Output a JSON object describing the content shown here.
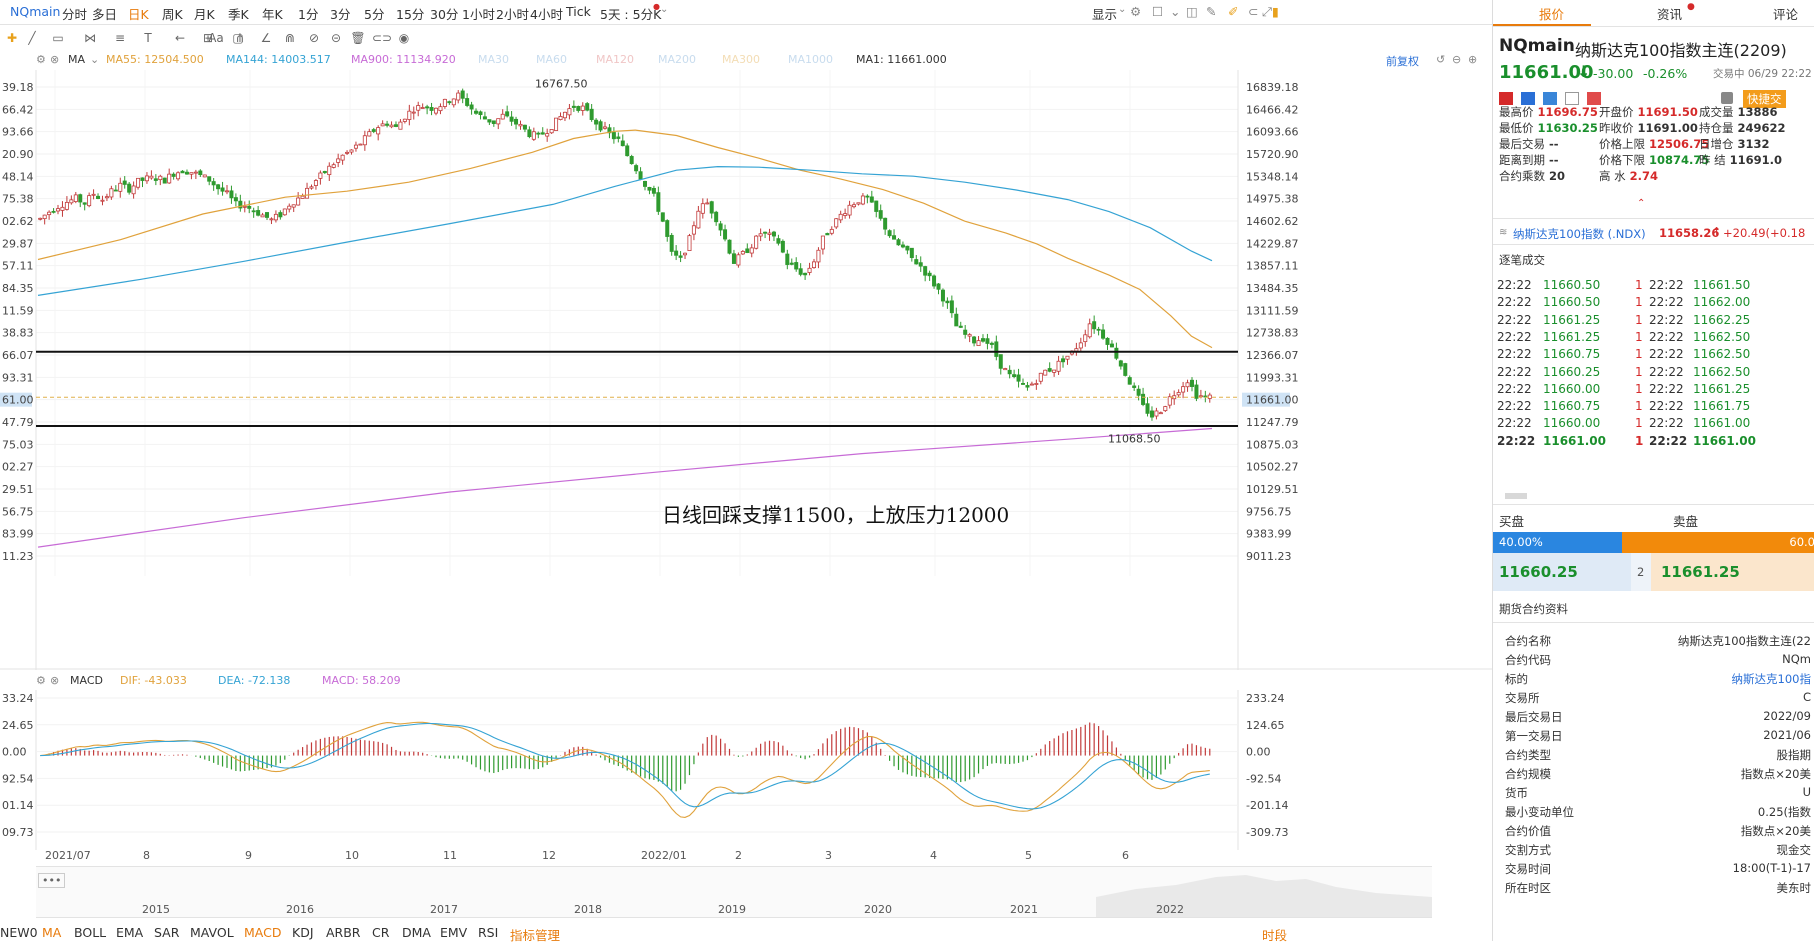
{
  "topbar": {
    "symbol": "NQmain",
    "periods": [
      "分时",
      "多日",
      "日K",
      "周K",
      "月K",
      "季K",
      "年K",
      "1分",
      "3分",
      "5分",
      "15分",
      "30分",
      "1小时",
      "2小时",
      "4小时",
      "Tick",
      "5天 : 5分K"
    ],
    "active_period": "日K",
    "display_label": "显示"
  },
  "ma_bar": {
    "type_label": "MA",
    "ma55": "MA55: 12504.500",
    "ma144": "MA144: 14003.517",
    "ma900": "MA900: 11134.920",
    "ma30": "MA30",
    "ma60": "MA60",
    "ma120": "MA120",
    "ma200": "MA200",
    "ma300": "MA300",
    "ma1000": "MA1000",
    "ma1": "MA1: 11661.000",
    "adjust_label": "前复权",
    "colors": {
      "ma55": "#e0a23c",
      "ma144": "#35a3d4",
      "ma900": "#c76bd6",
      "faded": "#c8dcee",
      "ma1": "#333333"
    }
  },
  "chart": {
    "high_label": "16767.50",
    "low_label": "11068.50",
    "current_price_label": "11661.00",
    "annotation": "日线回踩支撑11500，上放压力12000",
    "left_axis": [
      "39.18",
      "66.42",
      "93.66",
      "20.90",
      "48.14",
      "75.38",
      "02.62",
      "29.87",
      "57.11",
      "84.35",
      "11.59",
      "38.83",
      "66.07",
      "93.31",
      "61.00",
      "47.79",
      "75.03",
      "02.27",
      "29.51",
      "56.75",
      "83.99",
      "11.23"
    ],
    "right_axis": [
      "16839.18",
      "16466.42",
      "16093.66",
      "15720.90",
      "15348.14",
      "14975.38",
      "14602.62",
      "14229.87",
      "13857.11",
      "13484.35",
      "13111.59",
      "12738.83",
      "12366.07",
      "11993.31",
      "11661.00",
      "11247.79",
      "10875.03",
      "10502.27",
      "10129.51",
      "9756.75",
      "9383.99",
      "9011.23"
    ]
  },
  "chart_data": {
    "type": "candlestick",
    "ylim": [
      9011.23,
      16839.18
    ],
    "support_lines": [
      12420,
      11180
    ],
    "ma55_points": [
      [
        0,
        13960
      ],
      [
        8,
        14290
      ],
      [
        16,
        14720
      ],
      [
        24,
        15000
      ],
      [
        30,
        15100
      ],
      [
        36,
        15250
      ],
      [
        42,
        15480
      ],
      [
        48,
        15750
      ],
      [
        52,
        15980
      ],
      [
        56,
        16100
      ],
      [
        58,
        16120
      ],
      [
        62,
        16030
      ],
      [
        66,
        15830
      ],
      [
        70,
        15650
      ],
      [
        74,
        15450
      ],
      [
        78,
        15300
      ],
      [
        82,
        15130
      ],
      [
        86,
        14900
      ],
      [
        90,
        14600
      ],
      [
        94,
        14400
      ],
      [
        97,
        14220
      ],
      [
        100,
        13980
      ],
      [
        104,
        13700
      ],
      [
        107,
        13460
      ],
      [
        110,
        13020
      ],
      [
        112,
        12680
      ],
      [
        114,
        12490
      ]
    ],
    "ma144_points": [
      [
        0,
        13360
      ],
      [
        10,
        13630
      ],
      [
        20,
        13930
      ],
      [
        30,
        14250
      ],
      [
        40,
        14560
      ],
      [
        50,
        14880
      ],
      [
        56,
        15180
      ],
      [
        62,
        15450
      ],
      [
        66,
        15510
      ],
      [
        70,
        15500
      ],
      [
        75,
        15450
      ],
      [
        80,
        15390
      ],
      [
        85,
        15350
      ],
      [
        90,
        15250
      ],
      [
        95,
        15120
      ],
      [
        100,
        14960
      ],
      [
        104,
        14760
      ],
      [
        108,
        14490
      ],
      [
        112,
        14100
      ],
      [
        114,
        13940
      ]
    ],
    "ma900_points": [
      [
        0,
        9160
      ],
      [
        20,
        9650
      ],
      [
        40,
        10080
      ],
      [
        60,
        10410
      ],
      [
        80,
        10720
      ],
      [
        100,
        10960
      ],
      [
        114,
        11140
      ]
    ],
    "candles_note": "approximate daily candles Jul 2021 - Jun 2022",
    "closes": [
      14640,
      14760,
      14850,
      14920,
      14980,
      14900,
      15060,
      14960,
      15100,
      15200,
      15140,
      15260,
      15310,
      15320,
      15290,
      15400,
      15450,
      15420,
      15360,
      15290,
      15150,
      15050,
      14880,
      14860,
      14780,
      14700,
      14620,
      14710,
      14880,
      14980,
      15120,
      15280,
      15420,
      15560,
      15690,
      15780,
      15900,
      16050,
      16180,
      16240,
      16160,
      16350,
      16480,
      16520,
      16490,
      16540,
      16620,
      16700,
      16560,
      16400,
      16310,
      16250,
      16360,
      16280,
      16180,
      16060,
      16010,
      16120,
      16260,
      16420,
      16520,
      16490,
      16320,
      16180,
      16050,
      15950,
      15700,
      15480,
      15220,
      15010,
      14600,
      14050,
      13950,
      14300,
      14800,
      14900,
      14650,
      14300,
      13920,
      14050,
      14200,
      14400,
      14350,
      14250,
      13900,
      13800,
      13700,
      13950,
      14300,
      14520,
      14700,
      14860,
      14950,
      14980,
      14740,
      14500,
      14250,
      14150,
      13980,
      13850,
      13650,
      13450,
      13200,
      12850,
      12700,
      12600,
      12650,
      12500,
      12200,
      12020,
      11900,
      11820,
      11950,
      12100,
      12150,
      12300,
      12400,
      12600,
      12900,
      12780,
      12600,
      12350,
      12050,
      11780,
      11500,
      11350,
      11450,
      11650,
      11800,
      11950,
      11700,
      11661
    ],
    "macd_series": {
      "dif": "-43.033",
      "dea": "-72.138",
      "macd": "58.209",
      "ylim": [
        -309.73,
        233.24
      ]
    }
  },
  "macd_bar": {
    "type_label": "MACD",
    "dif": "DIF: -43.033",
    "dea": "DEA: -72.138",
    "macd": "MACD: 58.209",
    "left_axis": [
      "33.24",
      "24.65",
      "0.00",
      "92.54",
      "01.14",
      "09.73"
    ],
    "right_axis": [
      "233.24",
      "124.65",
      "0.00",
      "-92.54",
      "-201.14",
      "-309.73"
    ]
  },
  "xaxis": [
    "2021/07",
    "8",
    "9",
    "10",
    "11",
    "12",
    "2022/01",
    "2",
    "3",
    "4",
    "5",
    "6"
  ],
  "nav": {
    "dots": "•••",
    "years": [
      "2015",
      "2016",
      "2017",
      "2018",
      "2019",
      "2020",
      "2021",
      "2022"
    ]
  },
  "indicators": [
    "NEW0",
    "MA",
    "BOLL",
    "EMA",
    "SAR",
    "MAVOL",
    "MACD",
    "KDJ",
    "ARBR",
    "CR",
    "DMA",
    "EMV",
    "RSI",
    "指标管理"
  ],
  "indicators_active": [
    "MA",
    "MACD"
  ],
  "time_label": "时段",
  "panel": {
    "tabs": [
      "报价",
      "资讯",
      "评论"
    ],
    "code": "NQmain",
    "name": "纳斯达克100指数主连(2209)",
    "price": "11661.00",
    "change": "-30.00",
    "change_pct": "-0.26%",
    "status": "交易中 06/29 22:22",
    "quick_trade": "快捷交",
    "stats": [
      {
        "k": "最高价",
        "v": "11696.75",
        "c": "red"
      },
      {
        "k": "开盘价",
        "v": "11691.50",
        "c": "red"
      },
      {
        "k": "成交量",
        "v": "13886",
        "c": ""
      },
      {
        "k": "最低价",
        "v": "11630.25",
        "c": "green"
      },
      {
        "k": "昨收价",
        "v": "11691.00",
        "c": ""
      },
      {
        "k": "持仓量",
        "v": "249622",
        "c": ""
      },
      {
        "k": "最后交易",
        "v": "--",
        "c": ""
      },
      {
        "k": "价格上限",
        "v": "12506.75",
        "c": "red"
      },
      {
        "k": "日增仓",
        "v": "3132",
        "c": ""
      },
      {
        "k": "距离到期",
        "v": "--",
        "c": ""
      },
      {
        "k": "价格下限",
        "v": "10874.75",
        "c": "green"
      },
      {
        "k": "昨 结",
        "v": "11691.0",
        "c": ""
      },
      {
        "k": "合约乘数",
        "v": "20",
        "c": ""
      },
      {
        "k": "高 水",
        "v": "2.74",
        "c": "red"
      }
    ],
    "index_name": "纳斯达克100指数 (.NDX)",
    "index_price": "11658.26",
    "index_change": "+20.49(+0.18",
    "ticks_title": "逐笔成交",
    "ticks": [
      [
        "22:22",
        "11660.50",
        "1",
        "22:22",
        "11661.50"
      ],
      [
        "22:22",
        "11660.50",
        "1",
        "22:22",
        "11662.00"
      ],
      [
        "22:22",
        "11661.25",
        "1",
        "22:22",
        "11662.25"
      ],
      [
        "22:22",
        "11661.25",
        "1",
        "22:22",
        "11662.50"
      ],
      [
        "22:22",
        "11660.75",
        "1",
        "22:22",
        "11662.50"
      ],
      [
        "22:22",
        "11660.25",
        "1",
        "22:22",
        "11662.50"
      ],
      [
        "22:22",
        "11660.00",
        "1",
        "22:22",
        "11661.25"
      ],
      [
        "22:22",
        "11660.75",
        "1",
        "22:22",
        "11661.75"
      ],
      [
        "22:22",
        "11660.00",
        "1",
        "22:22",
        "11661.00"
      ],
      [
        "22:22",
        "11661.00",
        "1",
        "22:22",
        "11661.00"
      ]
    ],
    "bid_label": "买盘",
    "ask_label": "卖盘",
    "bid_pct": "40.00%",
    "ask_pct": "60.0",
    "bid_fraction": 0.4,
    "bid_price": "11660.25",
    "bid_qty": "2",
    "ask_price": "11661.25",
    "info_title": "期货合约资料",
    "info": [
      [
        "合约名称",
        "纳斯达克100指数主连(22"
      ],
      [
        "合约代码",
        "NQm"
      ],
      [
        "标的",
        "纳斯达克100指"
      ],
      [
        "交易所",
        "C"
      ],
      [
        "最后交易日",
        "2022/09"
      ],
      [
        "第一交易日",
        "2021/06"
      ],
      [
        "合约类型",
        "股指期"
      ],
      [
        "合约规模",
        "指数点×20美"
      ],
      [
        "货币",
        "U"
      ],
      [
        "最小变动单位",
        "0.25(指数"
      ],
      [
        "合约价值",
        "指数点×20美"
      ],
      [
        "交割方式",
        "现金交"
      ],
      [
        "交易时间",
        "18:00(T-1)-17"
      ],
      [
        "所在时区",
        "美东时"
      ]
    ]
  }
}
